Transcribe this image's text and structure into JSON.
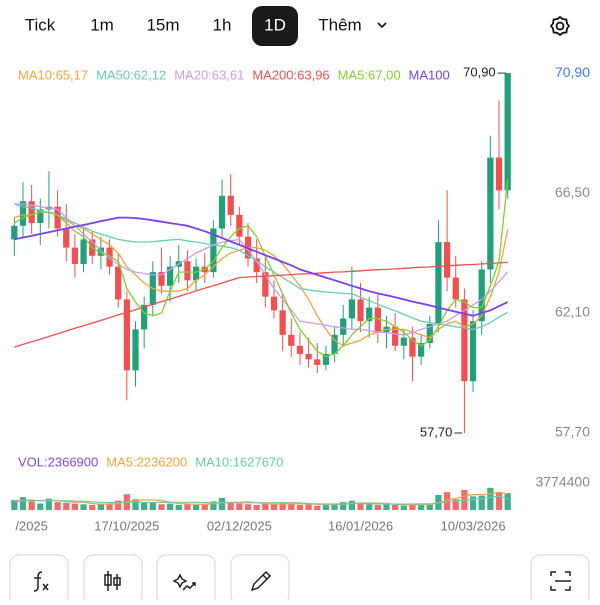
{
  "tabs": [
    "Tick",
    "1m",
    "15m",
    "1h",
    "1D",
    "Thêm"
  ],
  "chart_data": [
    {
      "type": "candlestick",
      "categories": [
        null,
        null,
        "/2025",
        null,
        null,
        null,
        null,
        null,
        null,
        null,
        null,
        null,
        null,
        "17/10/2025",
        null,
        null,
        null,
        null,
        null,
        null,
        null,
        null,
        null,
        null,
        null,
        null,
        "02/12/2025",
        null,
        null,
        null,
        null,
        null,
        null,
        null,
        null,
        null,
        null,
        null,
        null,
        null,
        "16/01/2026",
        null,
        null,
        null,
        null,
        null,
        null,
        null,
        null,
        null,
        null,
        null,
        null,
        "10/03/2026",
        null,
        null,
        null,
        null
      ],
      "open": [
        64.8,
        65.3,
        66.2,
        65.4,
        65.9,
        66.0,
        65.2,
        64.5,
        63.9,
        64.8,
        64.2,
        64.5,
        63.8,
        62.6,
        60.0,
        61.5,
        62.4,
        63.6,
        63.1,
        63.8,
        64.0,
        63.3,
        63.8,
        63.6,
        65.2,
        66.4,
        65.7,
        64.9,
        64.1,
        63.6,
        62.7,
        62.2,
        61.3,
        60.9,
        60.6,
        60.4,
        60.2,
        60.6,
        61.3,
        61.9,
        62.6,
        61.8,
        62.3,
        61.4,
        61.6,
        60.9,
        61.2,
        60.5,
        61.0,
        61.7,
        64.7,
        63.4,
        62.6,
        59.6,
        61.8,
        63.7,
        67.8,
        66.6
      ],
      "high": [
        65.6,
        66.9,
        66.8,
        66.3,
        67.3,
        66.6,
        66.1,
        65.0,
        65.2,
        65.1,
        64.9,
        64.8,
        64.3,
        62.9,
        61.8,
        62.7,
        64.0,
        64.5,
        64.2,
        64.6,
        64.4,
        64.1,
        64.3,
        65.5,
        67.0,
        67.2,
        66.0,
        65.4,
        64.8,
        64.2,
        63.3,
        62.8,
        61.9,
        61.4,
        61.2,
        61.0,
        60.9,
        61.6,
        62.4,
        63.8,
        63.2,
        62.7,
        62.8,
        62.0,
        62.1,
        61.5,
        61.6,
        61.3,
        62.0,
        65.5,
        66.6,
        64.2,
        63.0,
        62.2,
        64.0,
        68.6,
        69.9,
        70.9
      ],
      "low": [
        64.2,
        64.9,
        65.0,
        64.6,
        65.2,
        64.9,
        64.0,
        63.4,
        63.6,
        63.9,
        63.7,
        63.5,
        62.3,
        58.9,
        59.4,
        60.8,
        62.0,
        62.8,
        62.5,
        63.2,
        62.9,
        62.9,
        63.2,
        63.4,
        64.9,
        65.3,
        64.6,
        63.8,
        63.2,
        62.3,
        61.9,
        60.7,
        60.5,
        60.2,
        60.1,
        59.9,
        60.0,
        60.3,
        60.9,
        61.5,
        61.4,
        61.2,
        61.0,
        60.8,
        60.7,
        60.4,
        59.6,
        60.2,
        60.8,
        61.4,
        62.9,
        62.3,
        57.7,
        59.2,
        61.3,
        63.2,
        65.9,
        66.3
      ],
      "close": [
        65.3,
        66.2,
        65.4,
        65.9,
        66.0,
        65.2,
        64.5,
        63.9,
        64.8,
        64.2,
        64.5,
        63.8,
        62.6,
        60.0,
        61.5,
        62.4,
        63.6,
        63.1,
        63.8,
        64.0,
        63.3,
        63.8,
        63.6,
        65.2,
        66.4,
        65.7,
        64.9,
        64.1,
        63.6,
        62.7,
        62.2,
        61.3,
        60.9,
        60.6,
        60.4,
        60.2,
        60.6,
        61.3,
        61.9,
        62.6,
        61.8,
        62.3,
        61.4,
        61.6,
        60.9,
        61.2,
        60.5,
        61.0,
        61.7,
        64.7,
        63.4,
        62.6,
        59.6,
        61.8,
        63.7,
        67.8,
        66.6,
        70.9
      ],
      "up_color": "#22a07a",
      "down_color": "#f0504f",
      "series": [
        {
          "name": "MA10:65,17",
          "color": "#f5a33a",
          "values": [
            65.6,
            65.7,
            65.7,
            65.8,
            65.8,
            65.7,
            65.5,
            65.3,
            65.2,
            65.0,
            64.8,
            64.6,
            64.3,
            63.8,
            63.5,
            63.2,
            63.0,
            62.9,
            62.9,
            62.9,
            63.0,
            63.3,
            63.5,
            63.8,
            64.1,
            64.3,
            64.4,
            64.5,
            64.5,
            64.4,
            64.2,
            63.9,
            63.5,
            63.1,
            62.6,
            62.0,
            61.5,
            61.1,
            60.9,
            61.0,
            61.1,
            61.3,
            61.4,
            61.5,
            61.5,
            61.5,
            61.4,
            61.3,
            61.2,
            61.5,
            61.7,
            61.8,
            61.6,
            61.7,
            62.0,
            62.7,
            63.6,
            65.17
          ]
        },
        {
          "name": "MA50:62,12",
          "color": "#63cdb3",
          "values": [
            66.1,
            66.0,
            65.95,
            65.85,
            65.78,
            65.7,
            65.55,
            65.4,
            65.25,
            65.1,
            65.0,
            64.9,
            64.8,
            64.75,
            64.7,
            64.7,
            64.72,
            64.75,
            64.78,
            64.8,
            64.75,
            64.7,
            64.65,
            64.6,
            64.55,
            64.5,
            64.4,
            64.2,
            64.0,
            63.8,
            63.6,
            63.4,
            63.2,
            63.0,
            62.95,
            62.9,
            62.87,
            62.85,
            62.82,
            62.8,
            62.68,
            62.55,
            62.42,
            62.3,
            62.18,
            62.05,
            61.92,
            61.8,
            61.75,
            61.7,
            61.65,
            61.6,
            61.55,
            61.5,
            61.6,
            61.75,
            61.95,
            62.12
          ]
        },
        {
          "name": "MA20:63,61",
          "color": "#c89ef0",
          "values": [
            66.1,
            66.1,
            66.05,
            66.0,
            65.95,
            65.9,
            65.6,
            65.3,
            65.0,
            64.7,
            64.4,
            64.1,
            63.9,
            63.7,
            63.6,
            63.55,
            63.5,
            63.5,
            63.7,
            63.9,
            64.1,
            64.3,
            64.45,
            64.6,
            64.7,
            64.75,
            64.8,
            64.4,
            64.0,
            63.5,
            63.0,
            62.6,
            62.2,
            61.8,
            61.75,
            61.7,
            61.65,
            61.6,
            61.55,
            61.5,
            61.5,
            61.45,
            61.4,
            61.38,
            61.33,
            61.3,
            61.38,
            61.5,
            61.6,
            61.7,
            61.8,
            62.0,
            62.2,
            62.4,
            62.6,
            62.9,
            63.25,
            63.61
          ]
        },
        {
          "name": "MA200:63,96",
          "color": "#f0504f",
          "values": [
            60.85,
            60.95,
            61.05,
            61.14,
            61.24,
            61.34,
            61.44,
            61.54,
            61.63,
            61.73,
            61.83,
            61.93,
            62.03,
            62.12,
            62.22,
            62.32,
            62.42,
            62.52,
            62.61,
            62.71,
            62.81,
            62.91,
            63.01,
            63.1,
            63.2,
            63.3,
            63.4,
            63.42,
            63.44,
            63.45,
            63.47,
            63.49,
            63.51,
            63.53,
            63.54,
            63.56,
            63.58,
            63.6,
            63.61,
            63.63,
            63.65,
            63.67,
            63.69,
            63.7,
            63.72,
            63.74,
            63.76,
            63.78,
            63.79,
            63.81,
            63.83,
            63.85,
            63.87,
            63.88,
            63.9,
            63.92,
            63.94,
            63.96
          ]
        },
        {
          "name": "MA5:67,00",
          "color": "#7fd12a",
          "values": [
            65.4,
            65.6,
            65.7,
            65.8,
            65.8,
            65.7,
            65.4,
            65.1,
            64.9,
            64.5,
            64.3,
            64.2,
            64.0,
            63.0,
            62.5,
            62.1,
            62.0,
            62.1,
            62.9,
            63.6,
            63.6,
            63.6,
            63.7,
            64.0,
            64.5,
            64.9,
            65.2,
            65.3,
            64.9,
            64.2,
            63.5,
            62.8,
            62.1,
            61.5,
            61.1,
            60.7,
            60.5,
            60.6,
            60.9,
            61.3,
            61.6,
            61.9,
            61.9,
            61.8,
            61.6,
            61.4,
            61.1,
            60.9,
            61.1,
            61.6,
            62.2,
            62.6,
            62.5,
            62.3,
            62.3,
            63.1,
            64.0,
            67.0
          ]
        },
        {
          "name": "MA100",
          "color": "#7a3ff0",
          "values": [
            64.8,
            64.87,
            64.93,
            65.0,
            65.07,
            65.13,
            65.2,
            65.27,
            65.33,
            65.4,
            65.47,
            65.53,
            65.6,
            65.6,
            65.58,
            65.55,
            65.5,
            65.45,
            65.4,
            65.35,
            65.3,
            65.2,
            65.1,
            64.98,
            64.85,
            64.72,
            64.6,
            64.47,
            64.35,
            64.22,
            64.1,
            63.97,
            63.85,
            63.7,
            63.6,
            63.5,
            63.4,
            63.3,
            63.2,
            63.1,
            63.0,
            62.9,
            62.82,
            62.75,
            62.68,
            62.6,
            62.52,
            62.45,
            62.38,
            62.3,
            62.22,
            62.15,
            62.08,
            62.0,
            62.1,
            62.2,
            62.35,
            62.5
          ]
        }
      ],
      "ylim": [
        57.26,
        71.38
      ],
      "yticks": [
        {
          "value": 70.9,
          "label": "70,90"
        },
        {
          "value": 66.5,
          "label": "66,50"
        },
        {
          "value": 62.1,
          "label": "62,10"
        },
        {
          "value": 57.7,
          "label": "57,70"
        }
      ],
      "annotations": [
        "70,90",
        "57,70"
      ]
    },
    {
      "type": "bar",
      "name": "VOL:2366900",
      "color": "#8a45e8",
      "values": [
        1400000,
        1800000,
        1200000,
        900000,
        1600000,
        1100000,
        1000000,
        900000,
        800000,
        700000,
        800000,
        900000,
        1300000,
        2200000,
        1500000,
        1000000,
        1100000,
        800000,
        900000,
        700000,
        800000,
        700000,
        800000,
        1200000,
        1700000,
        1100000,
        900000,
        800000,
        700000,
        900000,
        800000,
        1000000,
        900000,
        700000,
        800000,
        600000,
        700000,
        900000,
        1100000,
        1300000,
        900000,
        800000,
        700000,
        800000,
        700000,
        600000,
        900000,
        700000,
        800000,
        2100000,
        2500000,
        1500000,
        2800000,
        1900000,
        2000000,
        3100000,
        2500000,
        2366900
      ],
      "series": [
        {
          "name": "MA5:2236200",
          "color": "#f5a33a",
          "values": [
            1300000,
            1350000,
            1400000,
            1300000,
            1380000,
            1320000,
            1160000,
            1100000,
            1080000,
            900000,
            840000,
            820000,
            900000,
            1180000,
            1340000,
            1380000,
            1420000,
            1320000,
            1100000,
            900000,
            860000,
            800000,
            780000,
            860000,
            1040000,
            1060000,
            1060000,
            1140000,
            1040000,
            880000,
            820000,
            840000,
            860000,
            860000,
            840000,
            800000,
            740000,
            740000,
            820000,
            920000,
            980000,
            1000000,
            960000,
            920000,
            780000,
            720000,
            740000,
            740000,
            740000,
            1020000,
            1400000,
            1600000,
            1940000,
            2160000,
            2140000,
            2260000,
            2460000,
            2236200
          ]
        },
        {
          "name": "MA10:1627670",
          "color": "#63cdb3",
          "values": [
            1250000,
            1280000,
            1300000,
            1300000,
            1320000,
            1310000,
            1270000,
            1250000,
            1230000,
            1130000,
            1070000,
            1030000,
            1040000,
            1080000,
            1070000,
            1060000,
            1070000,
            1060000,
            1080000,
            1080000,
            1080000,
            1060000,
            1040000,
            1000000,
            1020000,
            1030000,
            1010000,
            1010000,
            1000000,
            1020000,
            1020000,
            1030000,
            1040000,
            990000,
            900000,
            860000,
            840000,
            840000,
            860000,
            880000,
            880000,
            870000,
            840000,
            840000,
            830000,
            830000,
            840000,
            850000,
            850000,
            980000,
            1150000,
            1220000,
            1380000,
            1480000,
            1560000,
            1810000,
            1950000,
            1627670
          ]
        }
      ],
      "ylim": [
        0,
        3774400
      ],
      "yticks": [
        3774400
      ]
    }
  ]
}
